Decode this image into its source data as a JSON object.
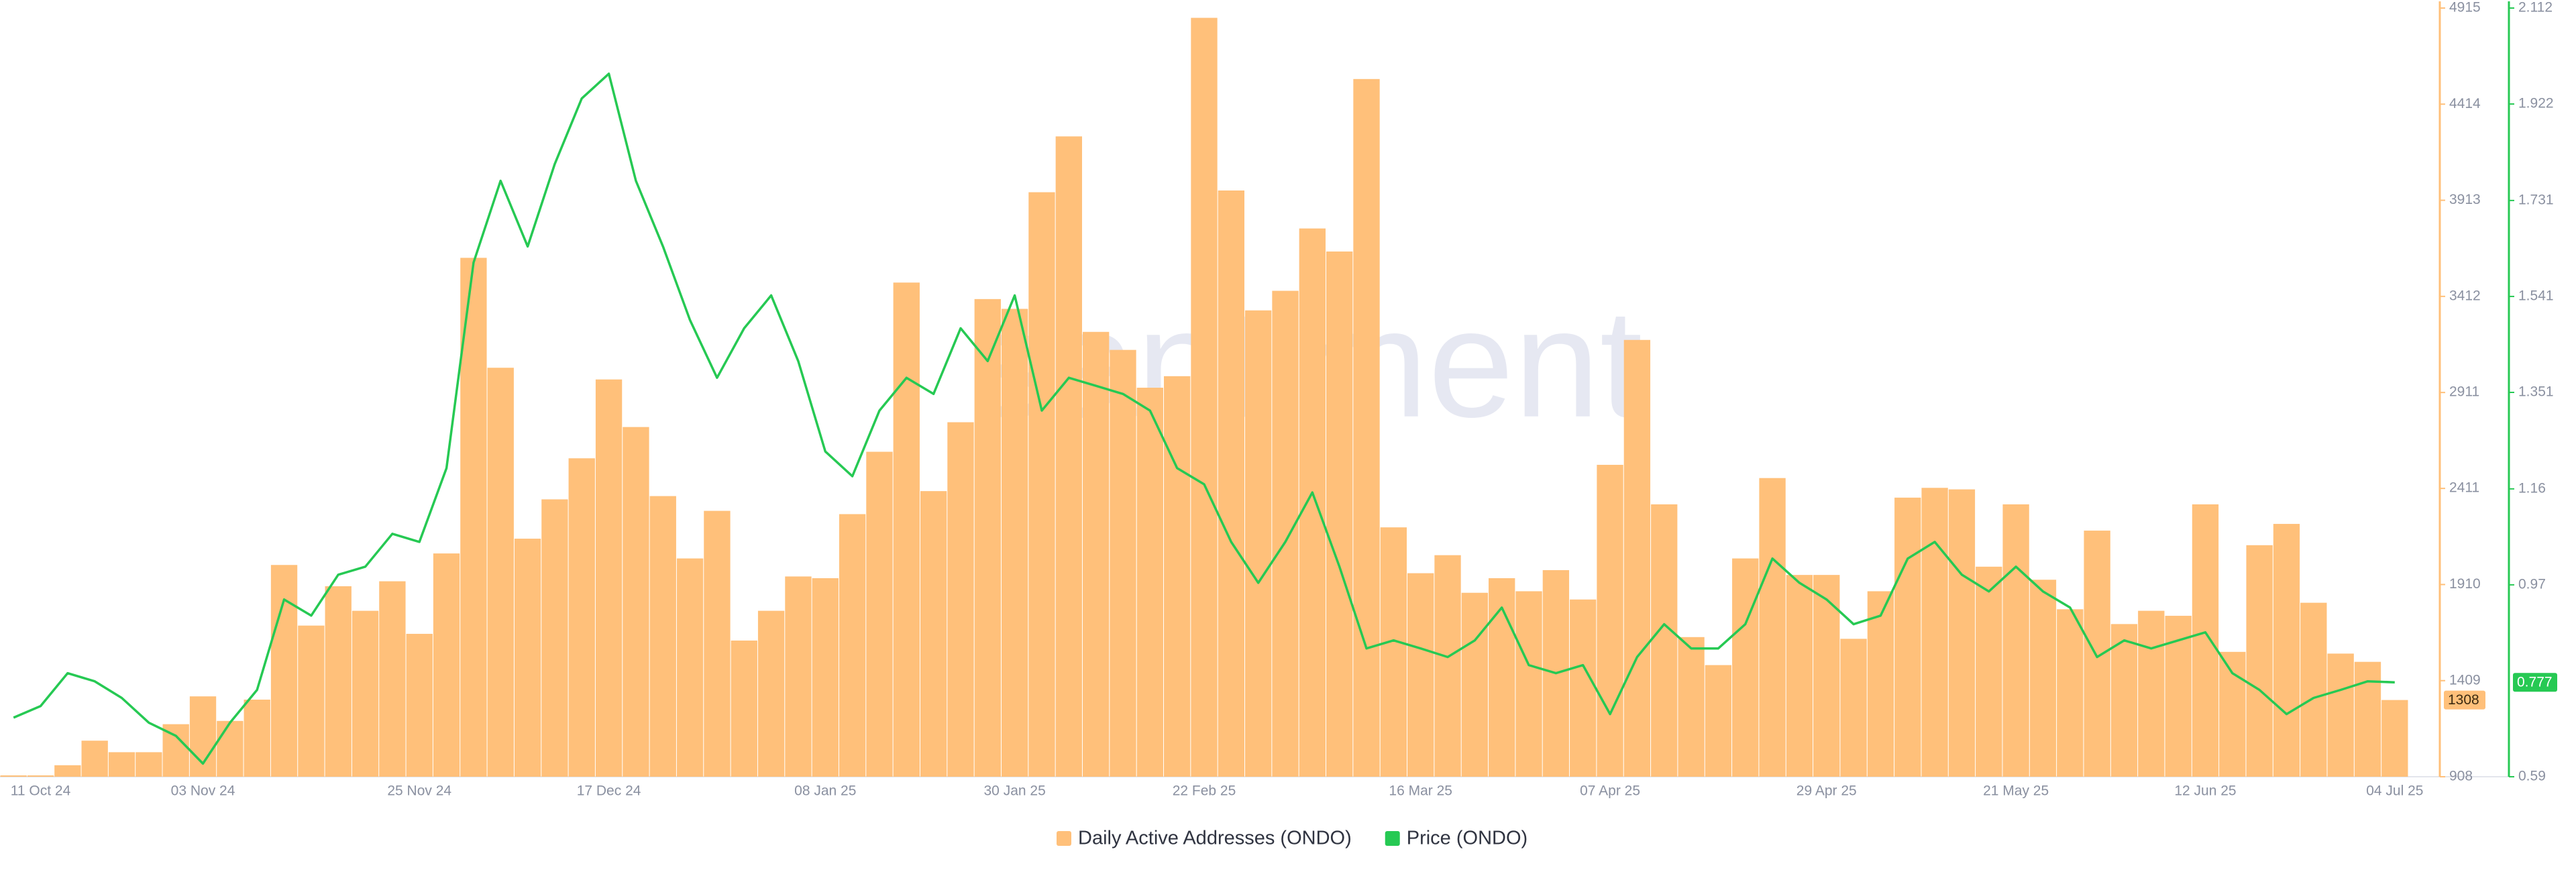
{
  "chart_data": {
    "type": "bar",
    "watermark": "santiment",
    "categories": [
      null,
      "11 Oct 24",
      null,
      null,
      null,
      null,
      null,
      "03 Nov 24",
      null,
      null,
      null,
      null,
      null,
      null,
      null,
      "25 Nov 24",
      null,
      null,
      null,
      null,
      null,
      null,
      "17 Dec 24",
      null,
      null,
      null,
      null,
      null,
      null,
      null,
      "08 Jan 25",
      null,
      null,
      null,
      null,
      null,
      null,
      "30 Jan 25",
      null,
      null,
      null,
      null,
      null,
      null,
      "22 Feb 25",
      null,
      null,
      null,
      null,
      null,
      null,
      null,
      "16 Mar 25",
      null,
      null,
      null,
      null,
      null,
      null,
      "07 Apr 25",
      null,
      null,
      null,
      null,
      null,
      null,
      null,
      "29 Apr 25",
      null,
      null,
      null,
      null,
      null,
      null,
      "21 May 25",
      null,
      null,
      null,
      null,
      null,
      null,
      "12 Jun 25",
      null,
      null,
      null,
      null,
      null,
      null,
      "04 Jul 25"
    ],
    "series": [
      {
        "name": "Daily Active Addresses (ONDO)",
        "color": "#ffc07a",
        "values": [
          915,
          915,
          968,
          1096,
          1036,
          1036,
          1182,
          1327,
          1199,
          1310,
          2012,
          1696,
          1901,
          1773,
          1927,
          1653,
          2072,
          3613,
          3040,
          2149,
          2354,
          2568,
          2979,
          2731,
          2371,
          2046,
          2294,
          1618,
          1773,
          1952,
          1943,
          2277,
          2602,
          3484,
          2397,
          2756,
          3398,
          3347,
          3955,
          4246,
          3227,
          3133,
          2936,
          2996,
          4864,
          3964,
          3339,
          3441,
          3766,
          3646,
          4545,
          2208,
          1969,
          2063,
          1867,
          1943,
          1875,
          1985,
          1832,
          2534,
          3185,
          2328,
          1636,
          1490,
          2046,
          2465,
          1960,
          1960,
          1627,
          1875,
          2363,
          2414,
          2406,
          2003,
          2328,
          1935,
          1781,
          2191,
          1704,
          1773,
          1747,
          2328,
          1559,
          2115,
          2226,
          1815,
          1550,
          1507,
          1308
        ]
      },
      {
        "name": "Price (ONDO)",
        "color": "#26c953",
        "type": "line",
        "axis": "y2",
        "values": [
          0.707,
          0.73,
          0.795,
          0.779,
          0.746,
          0.697,
          0.671,
          0.616,
          0.697,
          0.762,
          0.941,
          0.909,
          0.99,
          1.006,
          1.071,
          1.055,
          1.201,
          1.608,
          1.77,
          1.64,
          1.803,
          1.933,
          1.982,
          1.77,
          1.64,
          1.494,
          1.38,
          1.478,
          1.543,
          1.413,
          1.234,
          1.185,
          1.315,
          1.38,
          1.348,
          1.478,
          1.413,
          1.543,
          1.315,
          1.38,
          1.364,
          1.348,
          1.315,
          1.201,
          1.169,
          1.055,
          0.974,
          1.055,
          1.153,
          1.006,
          0.844,
          0.86,
          0.844,
          0.827,
          0.86,
          0.925,
          0.811,
          0.795,
          0.811,
          0.714,
          0.827,
          0.892,
          0.844,
          0.844,
          0.892,
          1.022,
          0.974,
          0.941,
          0.892,
          0.909,
          1.022,
          1.055,
          0.99,
          0.957,
          1.006,
          0.957,
          0.925,
          0.827,
          0.86,
          0.844,
          0.86,
          0.876,
          0.795,
          0.762,
          0.714,
          0.746,
          0.762,
          0.779,
          0.777
        ]
      }
    ],
    "ylim": [
      908,
      4915
    ],
    "yticks": [
      908,
      1409,
      1910,
      2411,
      2911,
      3412,
      3913,
      4414,
      4915
    ],
    "y2lim": [
      0.59,
      2.112
    ],
    "y2ticks": [
      0.59,
      0.97,
      1.16,
      1.351,
      1.541,
      1.731,
      1.922,
      2.112
    ],
    "legend": "bottom"
  }
}
